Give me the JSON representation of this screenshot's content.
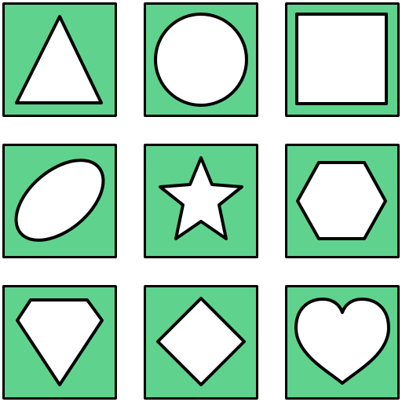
{
  "colors": {
    "tile_fill": "#5fd38d",
    "shape_fill": "#ffffff",
    "outline": "#000000"
  },
  "grid": {
    "rows": 3,
    "cols": 3,
    "tiles": [
      {
        "shape": "triangle"
      },
      {
        "shape": "circle"
      },
      {
        "shape": "square"
      },
      {
        "shape": "ellipse"
      },
      {
        "shape": "star"
      },
      {
        "shape": "hexagon"
      },
      {
        "shape": "diamond-gem"
      },
      {
        "shape": "diamond"
      },
      {
        "shape": "heart"
      }
    ]
  }
}
